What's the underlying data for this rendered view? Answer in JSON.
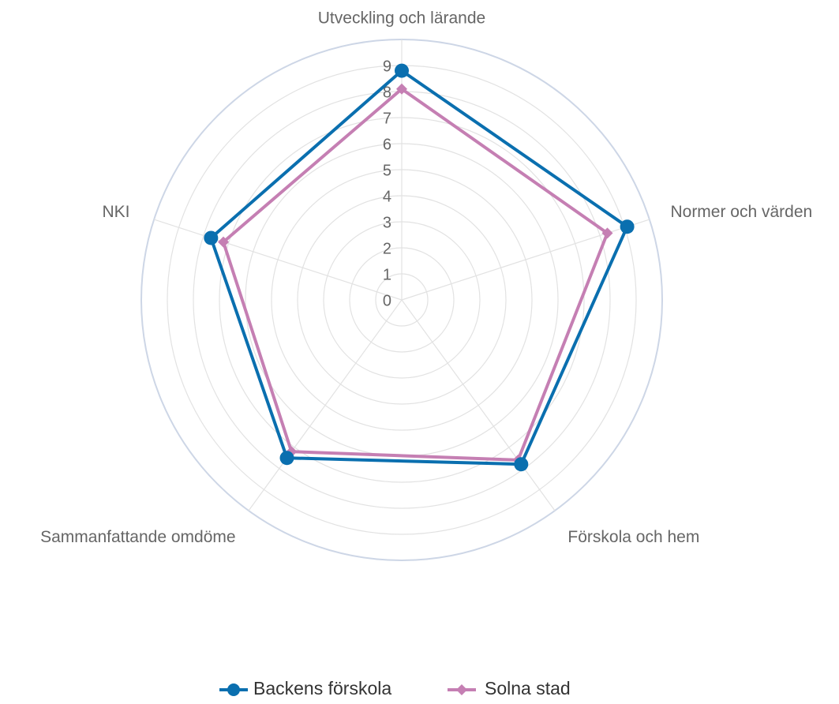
{
  "chart_data": {
    "type": "radar",
    "categories": [
      "Utveckling och lärande",
      "Normer och värden",
      "Förskola och hem",
      "Sammanfattande omdöme",
      "NKI"
    ],
    "radial_ticks": [
      "0",
      "1",
      "2",
      "3",
      "4",
      "5",
      "6",
      "7",
      "8",
      "9"
    ],
    "r_range": [
      0,
      10
    ],
    "grid": true,
    "legend_position": "bottom",
    "series": [
      {
        "name": "Backens förskola",
        "values": [
          8.8,
          9.1,
          7.8,
          7.5,
          7.7
        ],
        "color": "#0a6faf",
        "marker": "circle"
      },
      {
        "name": "Solna stad",
        "values": [
          8.1,
          8.3,
          7.6,
          7.2,
          7.2
        ],
        "color": "#c57fb3",
        "marker": "diamond"
      }
    ]
  },
  "colors": {
    "grid": "#e2e2e2",
    "outer_ring": "#cdd6e6",
    "text": "#666666"
  }
}
